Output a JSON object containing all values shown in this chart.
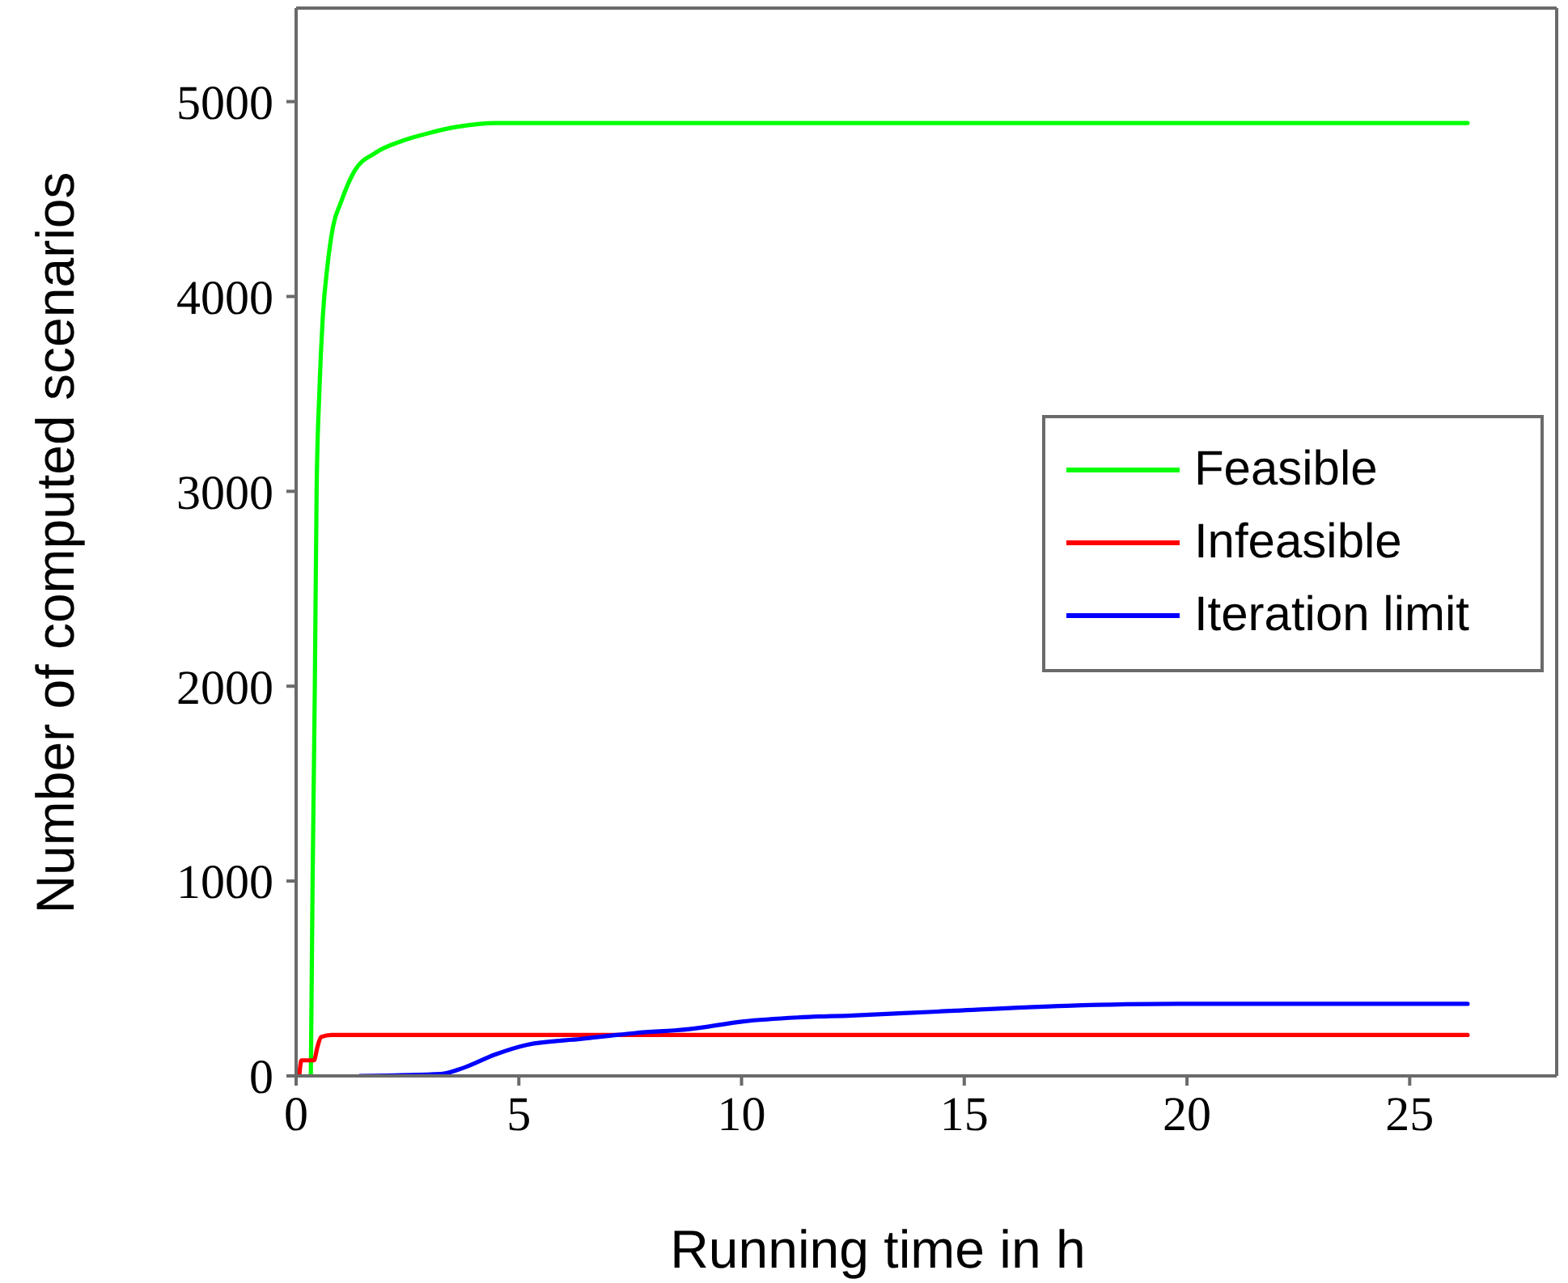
{
  "chart_data": {
    "type": "line",
    "xlabel": "Running time in h",
    "ylabel": "Number of computed scenarios",
    "xlim": [
      0,
      28.3
    ],
    "ylim": [
      0,
      5480
    ],
    "xticks": [
      0,
      5,
      10,
      15,
      20,
      25
    ],
    "yticks": [
      0,
      1000,
      2000,
      3000,
      4000,
      5000
    ],
    "legend": "right",
    "series": [
      {
        "name": "Feasible",
        "color": "#00ff00",
        "x": [
          0.33,
          0.37,
          0.42,
          0.46,
          0.52,
          0.6,
          0.7,
          0.83,
          1.0,
          1.3,
          1.8,
          2.4,
          3.0,
          3.6,
          4.5,
          8,
          12,
          20,
          26.3
        ],
        "values": [
          0,
          1000,
          2000,
          3000,
          3500,
          3900,
          4150,
          4360,
          4480,
          4640,
          4740,
          4800,
          4840,
          4870,
          4890,
          4890,
          4890,
          4890,
          4890
        ]
      },
      {
        "name": "Infeasible",
        "color": "#ff0000",
        "x": [
          0.07,
          0.12,
          0.4,
          0.48,
          0.56,
          0.8,
          26.3
        ],
        "values": [
          0,
          80,
          80,
          150,
          200,
          210,
          210
        ]
      },
      {
        "name": "Iteration limit",
        "color": "#0000ff",
        "x": [
          1.43,
          3.25,
          3.74,
          4.47,
          5.19,
          6.41,
          7.62,
          8.83,
          10.05,
          11.26,
          12.48,
          14.4,
          17.3,
          19.8,
          22.2,
          26.3
        ],
        "values": [
          0,
          10,
          40,
          110,
          160,
          190,
          220,
          240,
          280,
          300,
          310,
          330,
          360,
          370,
          370,
          370
        ]
      }
    ]
  }
}
